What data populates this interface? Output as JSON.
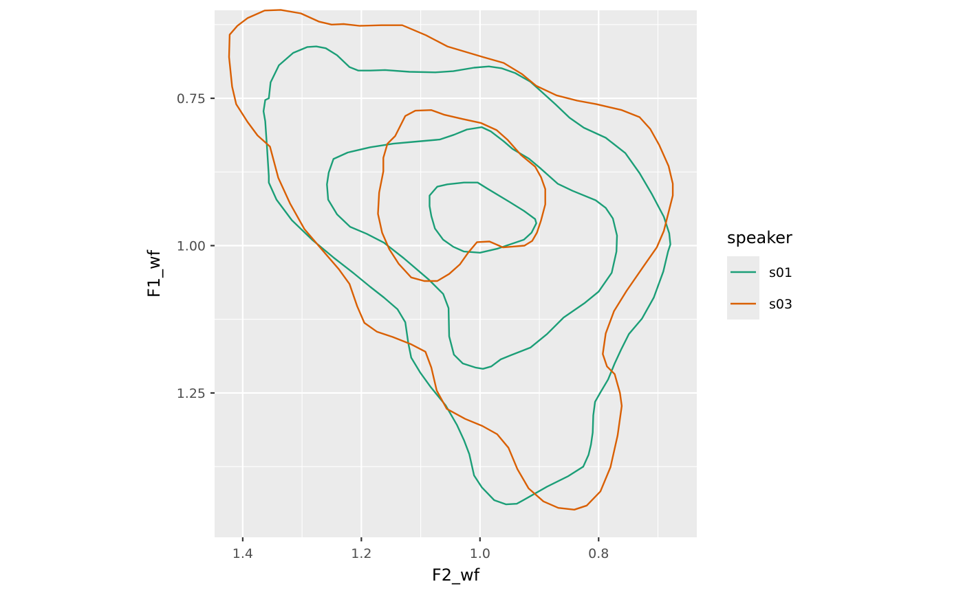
{
  "chart_data": {
    "type": "density_contour",
    "xlabel": "F2_wf",
    "ylabel": "F1_wf",
    "x_reversed": true,
    "y_reversed": true,
    "xlim": [
      1.4474,
      0.6345
    ],
    "ylim": [
      1.4949,
      0.6007
    ],
    "x_major": [
      1.4,
      1.2,
      1.0,
      0.8
    ],
    "x_tick_labels": [
      "1.4",
      "1.2",
      "1.0",
      "0.8"
    ],
    "y_major": [
      0.75,
      1.0,
      1.25
    ],
    "y_tick_labels": [
      "0.75",
      "1.00",
      "1.25"
    ],
    "x_minor": [
      1.3,
      1.1,
      0.9,
      0.7
    ],
    "y_minor": [
      0.625,
      0.875,
      1.125,
      1.375
    ],
    "panel_background": "#ebebeb",
    "grid_color": "#ffffff",
    "legend": {
      "title": "speaker",
      "position": "right",
      "entries": [
        "s01",
        "s03"
      ]
    },
    "series": [
      {
        "name": "s01",
        "color": "#1b9e77",
        "contours": [
          [
            [
              1.356,
              0.75
            ],
            [
              1.353,
              0.723
            ],
            [
              1.339,
              0.694
            ],
            [
              1.315,
              0.673
            ],
            [
              1.291,
              0.663
            ],
            [
              1.276,
              0.662
            ],
            [
              1.26,
              0.665
            ],
            [
              1.241,
              0.677
            ],
            [
              1.22,
              0.697
            ],
            [
              1.205,
              0.703
            ],
            [
              1.185,
              0.703
            ],
            [
              1.16,
              0.702
            ],
            [
              1.119,
              0.705
            ],
            [
              1.075,
              0.706
            ],
            [
              1.045,
              0.704
            ],
            [
              1.01,
              0.698
            ],
            [
              0.985,
              0.696
            ],
            [
              0.964,
              0.699
            ],
            [
              0.941,
              0.707
            ],
            [
              0.915,
              0.722
            ],
            [
              0.895,
              0.74
            ],
            [
              0.873,
              0.76
            ],
            [
              0.849,
              0.783
            ],
            [
              0.825,
              0.8
            ],
            [
              0.788,
              0.817
            ],
            [
              0.755,
              0.843
            ],
            [
              0.731,
              0.877
            ],
            [
              0.71,
              0.913
            ],
            [
              0.69,
              0.951
            ],
            [
              0.681,
              0.979
            ],
            [
              0.679,
              0.998
            ],
            [
              0.683,
              1.01
            ],
            [
              0.691,
              1.044
            ],
            [
              0.707,
              1.088
            ],
            [
              0.727,
              1.124
            ],
            [
              0.749,
              1.15
            ],
            [
              0.762,
              1.176
            ],
            [
              0.773,
              1.2
            ],
            [
              0.784,
              1.227
            ],
            [
              0.797,
              1.249
            ],
            [
              0.806,
              1.265
            ],
            [
              0.809,
              1.288
            ],
            [
              0.81,
              1.317
            ],
            [
              0.813,
              1.338
            ],
            [
              0.817,
              1.355
            ],
            [
              0.826,
              1.375
            ],
            [
              0.851,
              1.391
            ],
            [
              0.887,
              1.409
            ],
            [
              0.92,
              1.428
            ],
            [
              0.938,
              1.438
            ],
            [
              0.956,
              1.439
            ],
            [
              0.976,
              1.432
            ],
            [
              0.997,
              1.41
            ],
            [
              1.01,
              1.39
            ],
            [
              1.018,
              1.354
            ],
            [
              1.027,
              1.33
            ],
            [
              1.039,
              1.304
            ],
            [
              1.058,
              1.271
            ],
            [
              1.083,
              1.24
            ],
            [
              1.101,
              1.215
            ],
            [
              1.116,
              1.19
            ],
            [
              1.121,
              1.165
            ],
            [
              1.126,
              1.13
            ],
            [
              1.139,
              1.108
            ],
            [
              1.162,
              1.088
            ],
            [
              1.185,
              1.07
            ],
            [
              1.214,
              1.046
            ],
            [
              1.246,
              1.021
            ],
            [
              1.283,
              0.99
            ],
            [
              1.317,
              0.957
            ],
            [
              1.343,
              0.922
            ],
            [
              1.356,
              0.893
            ],
            [
              1.356,
              0.882
            ],
            [
              1.359,
              0.834
            ],
            [
              1.362,
              0.789
            ],
            [
              1.365,
              0.772
            ],
            [
              1.362,
              0.753
            ],
            [
              1.356,
              0.75
            ]
          ],
          [
            [
              1.255,
              0.876
            ],
            [
              1.247,
              0.853
            ],
            [
              1.223,
              0.842
            ],
            [
              1.185,
              0.833
            ],
            [
              1.146,
              0.827
            ],
            [
              1.113,
              0.824
            ],
            [
              1.068,
              0.82
            ],
            [
              1.044,
              0.812
            ],
            [
              1.022,
              0.803
            ],
            [
              0.997,
              0.799
            ],
            [
              0.982,
              0.806
            ],
            [
              0.96,
              0.823
            ],
            [
              0.945,
              0.836
            ],
            [
              0.918,
              0.852
            ],
            [
              0.899,
              0.868
            ],
            [
              0.869,
              0.895
            ],
            [
              0.844,
              0.907
            ],
            [
              0.805,
              0.923
            ],
            [
              0.788,
              0.936
            ],
            [
              0.776,
              0.954
            ],
            [
              0.769,
              0.983
            ],
            [
              0.77,
              1.01
            ],
            [
              0.778,
              1.046
            ],
            [
              0.8,
              1.078
            ],
            [
              0.823,
              1.097
            ],
            [
              0.859,
              1.122
            ],
            [
              0.887,
              1.15
            ],
            [
              0.915,
              1.173
            ],
            [
              0.948,
              1.186
            ],
            [
              0.965,
              1.193
            ],
            [
              0.981,
              1.205
            ],
            [
              0.995,
              1.209
            ],
            [
              1.007,
              1.207
            ],
            [
              1.029,
              1.2
            ],
            [
              1.044,
              1.185
            ],
            [
              1.052,
              1.154
            ],
            [
              1.053,
              1.106
            ],
            [
              1.062,
              1.082
            ],
            [
              1.087,
              1.057
            ],
            [
              1.129,
              1.021
            ],
            [
              1.162,
              0.995
            ],
            [
              1.191,
              0.98
            ],
            [
              1.219,
              0.968
            ],
            [
              1.241,
              0.947
            ],
            [
              1.256,
              0.922
            ],
            [
              1.258,
              0.896
            ],
            [
              1.255,
              0.876
            ]
          ],
          [
            [
              1.004,
              0.893
            ],
            [
              0.988,
              0.903
            ],
            [
              0.95,
              0.926
            ],
            [
              0.926,
              0.941
            ],
            [
              0.907,
              0.955
            ],
            [
              0.905,
              0.962
            ],
            [
              0.913,
              0.978
            ],
            [
              0.926,
              0.99
            ],
            [
              0.97,
              1.005
            ],
            [
              1.0,
              1.012
            ],
            [
              1.027,
              1.01
            ],
            [
              1.045,
              1.002
            ],
            [
              1.062,
              0.99
            ],
            [
              1.076,
              0.971
            ],
            [
              1.082,
              0.95
            ],
            [
              1.085,
              0.933
            ],
            [
              1.085,
              0.915
            ],
            [
              1.072,
              0.9
            ],
            [
              1.055,
              0.896
            ],
            [
              1.027,
              0.893
            ],
            [
              1.004,
              0.893
            ]
          ]
        ]
      },
      {
        "name": "s03",
        "color": "#d95f02",
        "contours": [
          [
            [
              1.411,
              0.76
            ],
            [
              1.392,
              0.79
            ],
            [
              1.375,
              0.813
            ],
            [
              1.354,
              0.832
            ],
            [
              1.34,
              0.885
            ],
            [
              1.32,
              0.929
            ],
            [
              1.296,
              0.972
            ],
            [
              1.262,
              1.012
            ],
            [
              1.238,
              1.04
            ],
            [
              1.22,
              1.065
            ],
            [
              1.207,
              1.103
            ],
            [
              1.195,
              1.131
            ],
            [
              1.174,
              1.146
            ],
            [
              1.147,
              1.155
            ],
            [
              1.117,
              1.167
            ],
            [
              1.092,
              1.18
            ],
            [
              1.082,
              1.207
            ],
            [
              1.073,
              1.246
            ],
            [
              1.056,
              1.277
            ],
            [
              1.025,
              1.294
            ],
            [
              0.996,
              1.306
            ],
            [
              0.971,
              1.32
            ],
            [
              0.952,
              1.343
            ],
            [
              0.937,
              1.379
            ],
            [
              0.918,
              1.412
            ],
            [
              0.893,
              1.434
            ],
            [
              0.868,
              1.445
            ],
            [
              0.841,
              1.448
            ],
            [
              0.82,
              1.441
            ],
            [
              0.797,
              1.417
            ],
            [
              0.78,
              1.376
            ],
            [
              0.768,
              1.322
            ],
            [
              0.761,
              1.272
            ],
            [
              0.764,
              1.25
            ],
            [
              0.773,
              1.218
            ],
            [
              0.786,
              1.205
            ],
            [
              0.793,
              1.184
            ],
            [
              0.788,
              1.149
            ],
            [
              0.774,
              1.111
            ],
            [
              0.753,
              1.077
            ],
            [
              0.725,
              1.036
            ],
            [
              0.702,
              1.003
            ],
            [
              0.69,
              0.975
            ],
            [
              0.675,
              0.915
            ],
            [
              0.675,
              0.895
            ],
            [
              0.682,
              0.865
            ],
            [
              0.698,
              0.829
            ],
            [
              0.713,
              0.802
            ],
            [
              0.731,
              0.782
            ],
            [
              0.761,
              0.77
            ],
            [
              0.804,
              0.76
            ],
            [
              0.836,
              0.754
            ],
            [
              0.871,
              0.745
            ],
            [
              0.905,
              0.729
            ],
            [
              0.929,
              0.709
            ],
            [
              0.96,
              0.69
            ],
            [
              0.995,
              0.68
            ],
            [
              1.055,
              0.662
            ],
            [
              1.091,
              0.643
            ],
            [
              1.131,
              0.626
            ],
            [
              1.166,
              0.626
            ],
            [
              1.203,
              0.627
            ],
            [
              1.23,
              0.624
            ],
            [
              1.25,
              0.625
            ],
            [
              1.271,
              0.62
            ],
            [
              1.302,
              0.606
            ],
            [
              1.336,
              0.6
            ],
            [
              1.363,
              0.601
            ],
            [
              1.392,
              0.614
            ],
            [
              1.409,
              0.627
            ],
            [
              1.422,
              0.642
            ],
            [
              1.423,
              0.68
            ],
            [
              1.418,
              0.73
            ],
            [
              1.411,
              0.76
            ]
          ],
          [
            [
              1.143,
              0.814
            ],
            [
              1.126,
              0.78
            ],
            [
              1.109,
              0.771
            ],
            [
              1.082,
              0.77
            ],
            [
              1.06,
              0.778
            ],
            [
              1.03,
              0.785
            ],
            [
              0.998,
              0.792
            ],
            [
              0.972,
              0.804
            ],
            [
              0.954,
              0.82
            ],
            [
              0.931,
              0.846
            ],
            [
              0.907,
              0.866
            ],
            [
              0.897,
              0.884
            ],
            [
              0.89,
              0.904
            ],
            [
              0.89,
              0.93
            ],
            [
              0.897,
              0.957
            ],
            [
              0.904,
              0.978
            ],
            [
              0.912,
              0.992
            ],
            [
              0.925,
              1.0
            ],
            [
              0.961,
              1.003
            ],
            [
              0.984,
              0.993
            ],
            [
              1.005,
              0.994
            ],
            [
              1.02,
              1.012
            ],
            [
              1.034,
              1.032
            ],
            [
              1.052,
              1.048
            ],
            [
              1.072,
              1.06
            ],
            [
              1.094,
              1.06
            ],
            [
              1.116,
              1.054
            ],
            [
              1.137,
              1.031
            ],
            [
              1.153,
              1.006
            ],
            [
              1.165,
              0.978
            ],
            [
              1.172,
              0.946
            ],
            [
              1.17,
              0.91
            ],
            [
              1.163,
              0.874
            ],
            [
              1.163,
              0.851
            ],
            [
              1.156,
              0.827
            ],
            [
              1.143,
              0.814
            ]
          ]
        ]
      }
    ]
  }
}
